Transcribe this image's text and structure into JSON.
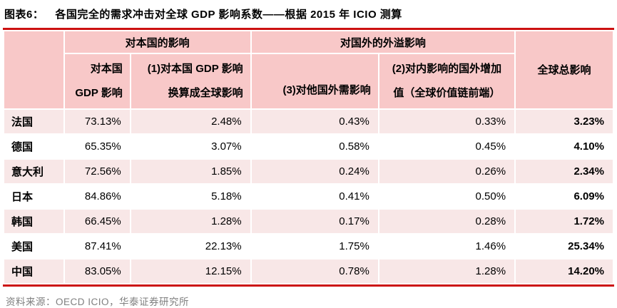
{
  "title": {
    "label": "图表6：",
    "text": "各国完全的需求冲击对全球 GDP 影响系数——根据 2015 年 ICIO 测算"
  },
  "table": {
    "group_headers": {
      "domestic": "对本国的影响",
      "foreign_spillover": "对国外的外溢影响",
      "global_total": "全球总影响"
    },
    "sub_headers": {
      "domestic_gdp_line1": "对本国",
      "domestic_gdp_line2": "GDP 影响",
      "converted_line1": "(1)对本国 GDP 影响",
      "converted_line2": "换算成全球影响",
      "external_demand": "(3)对他国外需影响",
      "foreign_value_added_line1": "(2)对内影响的国外增加",
      "foreign_value_added_line2": "值（全球价值链前端）"
    },
    "columns": [
      "country",
      "domestic_gdp",
      "converted_global",
      "external_demand",
      "foreign_value_added",
      "global_total"
    ],
    "rows": [
      {
        "country": "法国",
        "domestic_gdp": "73.13%",
        "converted_global": "2.48%",
        "external_demand": "0.43%",
        "foreign_value_added": "0.33%",
        "global_total": "3.23%"
      },
      {
        "country": "德国",
        "domestic_gdp": "65.35%",
        "converted_global": "3.07%",
        "external_demand": "0.58%",
        "foreign_value_added": "0.45%",
        "global_total": "4.10%"
      },
      {
        "country": "意大利",
        "domestic_gdp": "72.56%",
        "converted_global": "1.85%",
        "external_demand": "0.24%",
        "foreign_value_added": "0.26%",
        "global_total": "2.34%"
      },
      {
        "country": "日本",
        "domestic_gdp": "84.86%",
        "converted_global": "5.18%",
        "external_demand": "0.41%",
        "foreign_value_added": "0.50%",
        "global_total": "6.09%"
      },
      {
        "country": "韩国",
        "domestic_gdp": "66.45%",
        "converted_global": "1.28%",
        "external_demand": "0.17%",
        "foreign_value_added": "0.28%",
        "global_total": "1.72%"
      },
      {
        "country": "美国",
        "domestic_gdp": "87.41%",
        "converted_global": "22.13%",
        "external_demand": "1.75%",
        "foreign_value_added": "1.46%",
        "global_total": "25.34%"
      },
      {
        "country": "中国",
        "domestic_gdp": "83.05%",
        "converted_global": "12.15%",
        "external_demand": "0.78%",
        "foreign_value_added": "1.28%",
        "global_total": "14.20%"
      }
    ]
  },
  "footer": {
    "source": "资料来源：OECD ICIO，华泰证券研究所"
  },
  "colors": {
    "header_pink": "#f8c8c8",
    "row_pink": "#f8e7e7",
    "rule_red": "#cc1111",
    "source_gray": "#7f7f7f",
    "text_black": "#000000"
  }
}
